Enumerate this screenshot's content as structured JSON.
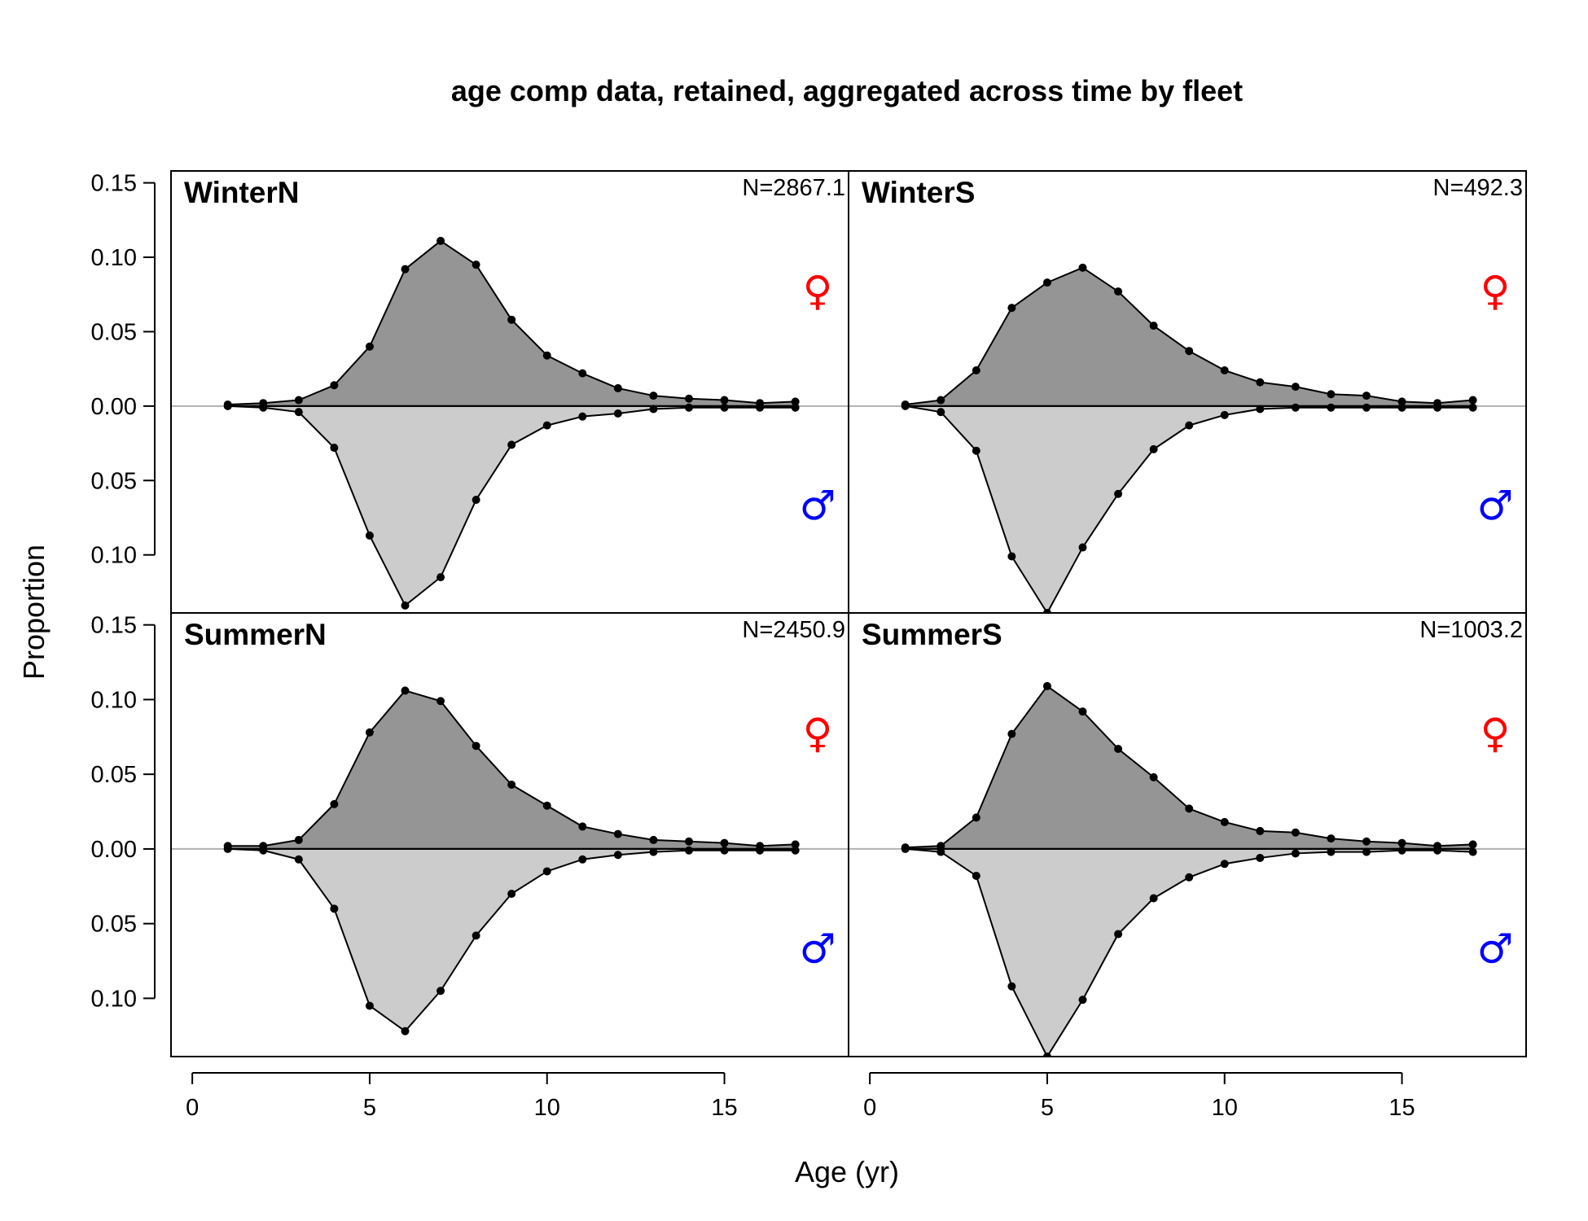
{
  "chart_data": {
    "type": "area",
    "title": "age comp data, retained, aggregated across time by fleet",
    "xlabel": "Age (yr)",
    "ylabel": "Proportion",
    "x_ticks": [
      0,
      5,
      10,
      15
    ],
    "y_tick_values": [
      0.15,
      0.1,
      0.05,
      0.0,
      -0.05,
      -0.1
    ],
    "y_tick_labels": [
      "0.15",
      "0.10",
      "0.05",
      "0.00",
      "0.05",
      "0.10"
    ],
    "xlim": [
      -0.6,
      18.5
    ],
    "ylim": [
      -0.139,
      0.158
    ],
    "grid": false,
    "colors": {
      "female_fill": "#959595",
      "male_fill": "#cccccc",
      "line": "#000000",
      "zero_line": "#b0b0b0",
      "female_symbol": "#ff0000",
      "male_symbol": "#0000ff"
    },
    "sex_symbols": {
      "female": "♀",
      "male": "♂"
    },
    "ages": [
      1,
      2,
      3,
      4,
      5,
      6,
      7,
      8,
      9,
      10,
      11,
      12,
      13,
      14,
      15,
      16,
      17
    ],
    "panels": [
      {
        "name": "WinterN",
        "n_label": "N=2867.1",
        "series": [
          {
            "sex": "female",
            "values": [
              0.001,
              0.002,
              0.004,
              0.014,
              0.04,
              0.092,
              0.111,
              0.095,
              0.058,
              0.034,
              0.022,
              0.012,
              0.007,
              0.005,
              0.004,
              0.002,
              0.003
            ]
          },
          {
            "sex": "male",
            "values": [
              0.0,
              0.001,
              0.004,
              0.028,
              0.087,
              0.134,
              0.115,
              0.063,
              0.026,
              0.013,
              0.007,
              0.005,
              0.002,
              0.001,
              0.001,
              0.001,
              0.001
            ]
          }
        ]
      },
      {
        "name": "WinterS",
        "n_label": "N=492.3",
        "series": [
          {
            "sex": "female",
            "values": [
              0.001,
              0.004,
              0.024,
              0.066,
              0.083,
              0.093,
              0.077,
              0.054,
              0.037,
              0.024,
              0.016,
              0.013,
              0.008,
              0.007,
              0.003,
              0.002,
              0.004
            ]
          },
          {
            "sex": "male",
            "values": [
              0.0,
              0.004,
              0.03,
              0.101,
              0.139,
              0.095,
              0.059,
              0.029,
              0.013,
              0.006,
              0.002,
              0.001,
              0.001,
              0.001,
              0.001,
              0.001,
              0.001
            ]
          }
        ]
      },
      {
        "name": "SummerN",
        "n_label": "N=2450.9",
        "series": [
          {
            "sex": "female",
            "values": [
              0.002,
              0.002,
              0.006,
              0.03,
              0.078,
              0.106,
              0.099,
              0.069,
              0.043,
              0.029,
              0.015,
              0.01,
              0.006,
              0.005,
              0.004,
              0.002,
              0.003
            ]
          },
          {
            "sex": "male",
            "values": [
              0.0,
              0.001,
              0.007,
              0.04,
              0.105,
              0.122,
              0.095,
              0.058,
              0.03,
              0.015,
              0.007,
              0.004,
              0.002,
              0.001,
              0.001,
              0.001,
              0.001
            ]
          }
        ]
      },
      {
        "name": "SummerS",
        "n_label": "N=1003.2",
        "series": [
          {
            "sex": "female",
            "values": [
              0.001,
              0.002,
              0.021,
              0.077,
              0.109,
              0.092,
              0.067,
              0.048,
              0.027,
              0.018,
              0.012,
              0.011,
              0.007,
              0.005,
              0.004,
              0.002,
              0.003
            ]
          },
          {
            "sex": "male",
            "values": [
              0.0,
              0.002,
              0.018,
              0.092,
              0.139,
              0.101,
              0.057,
              0.033,
              0.019,
              0.01,
              0.006,
              0.003,
              0.002,
              0.002,
              0.001,
              0.001,
              0.002
            ]
          }
        ]
      }
    ]
  }
}
